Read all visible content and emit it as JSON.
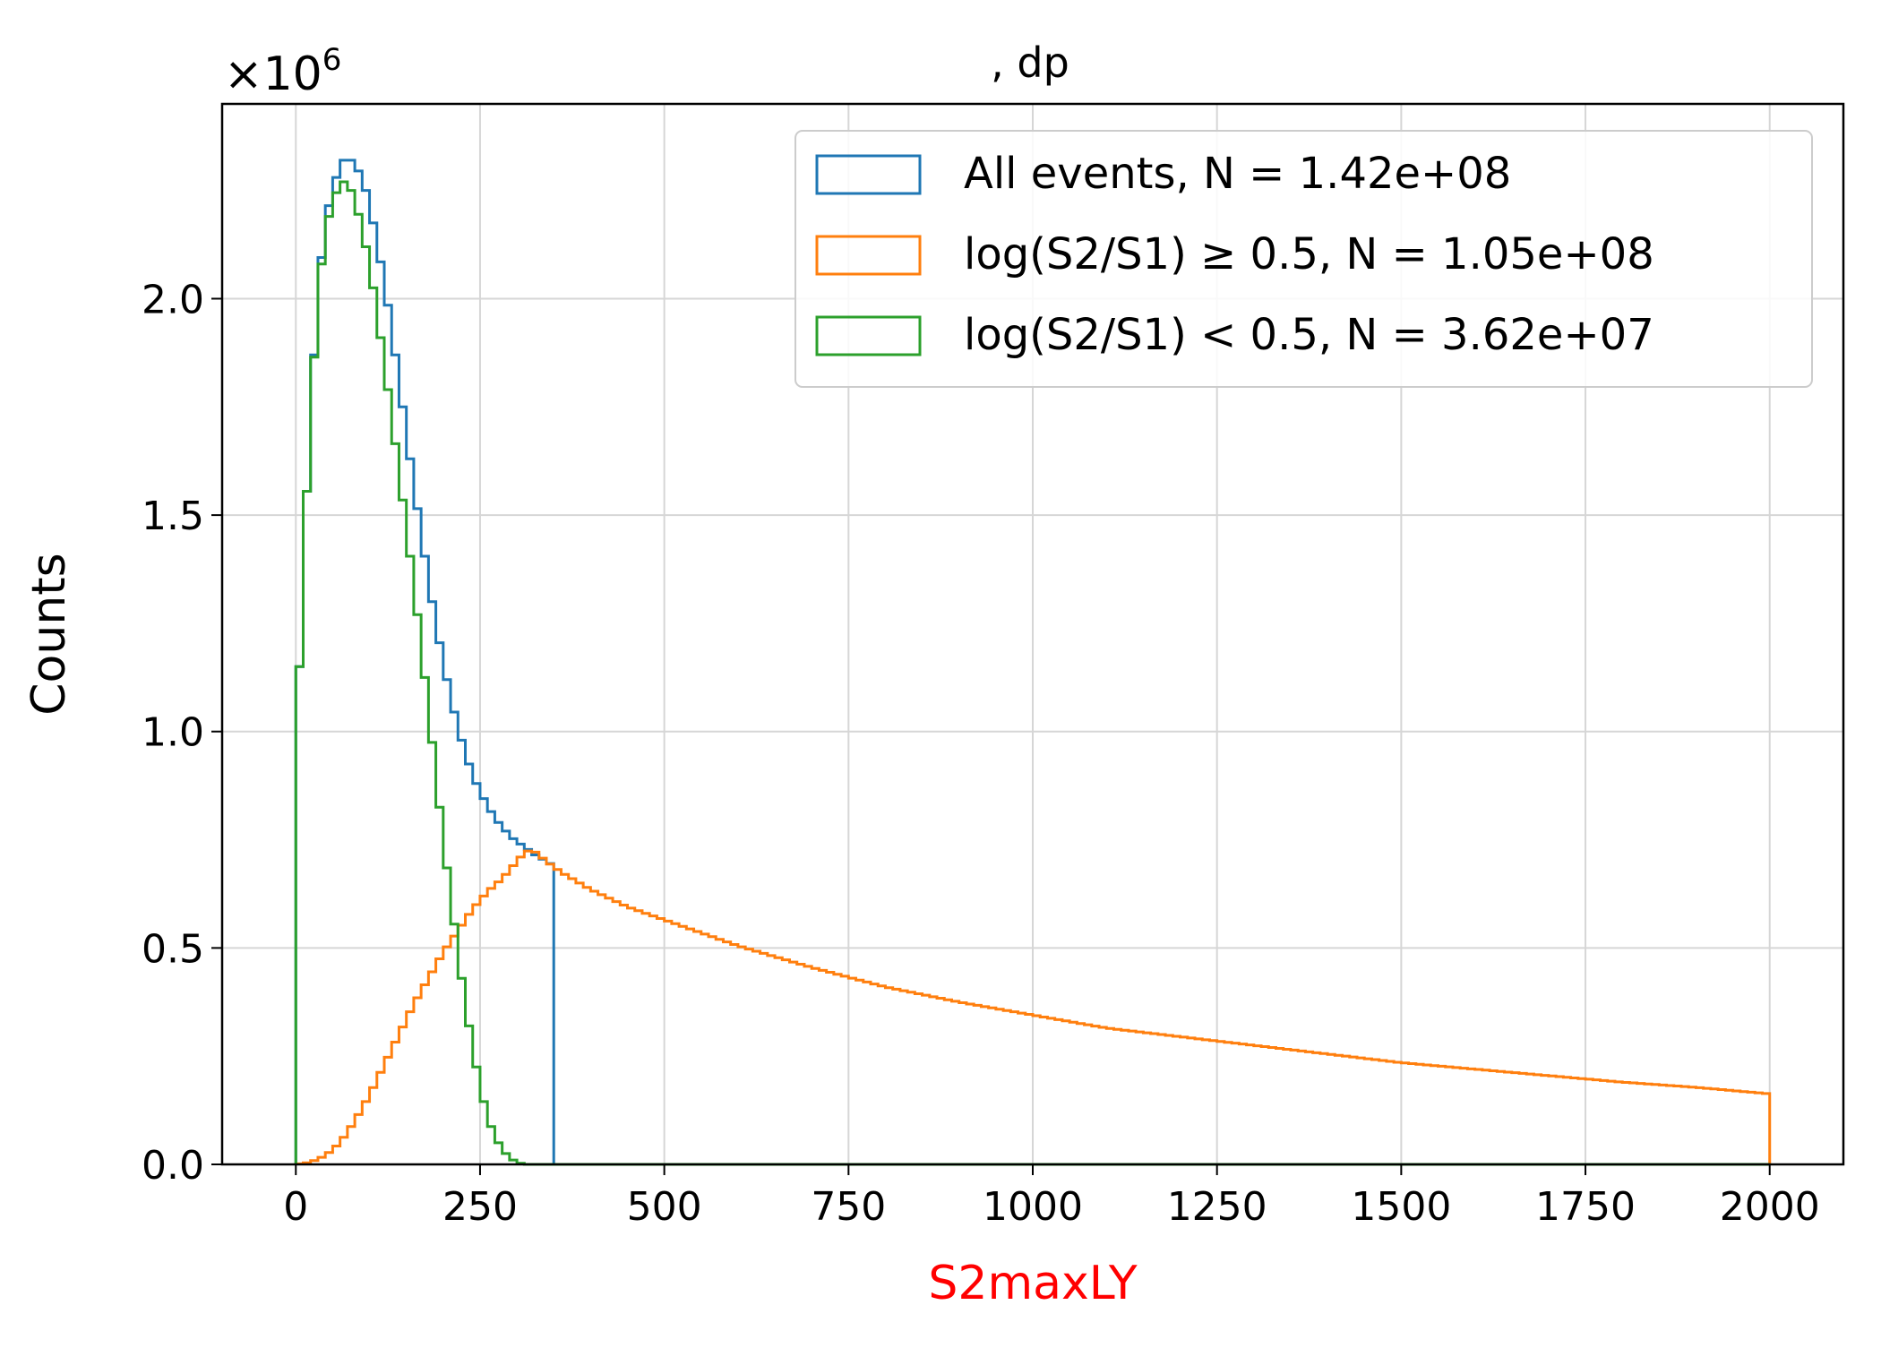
{
  "chart_data": {
    "type": "histogram",
    "title": ", dp",
    "xlabel": "S2maxLY",
    "ylabel": "Counts",
    "y_multiplier": "×10",
    "y_multiplier_exp": "6",
    "xlim": [
      -100,
      2100
    ],
    "ylim": [
      0,
      2.45
    ],
    "xticks": [
      0,
      250,
      500,
      750,
      1000,
      1250,
      1500,
      1750,
      2000
    ],
    "yticks": [
      0.0,
      0.5,
      1.0,
      1.5,
      2.0
    ],
    "grid": true,
    "legend_position": "top-right",
    "bin_width": 10,
    "x_range": [
      0,
      2000
    ],
    "colors": {
      "all": "#1f77b4",
      "high": "#ff7f0e",
      "low": "#2ca02c",
      "xlabel": "#ff0000"
    },
    "series": [
      {
        "key": "all",
        "name": "All events, N = 1.42e+08",
        "control_points": [
          [
            0,
            0.92
          ],
          [
            10,
            1.38
          ],
          [
            20,
            1.73
          ],
          [
            30,
            2.01
          ],
          [
            40,
            2.18
          ],
          [
            50,
            2.25
          ],
          [
            60,
            2.31
          ],
          [
            70,
            2.33
          ],
          [
            80,
            2.31
          ],
          [
            90,
            2.28
          ],
          [
            100,
            2.22
          ],
          [
            110,
            2.13
          ],
          [
            120,
            2.04
          ],
          [
            130,
            1.93
          ],
          [
            140,
            1.81
          ],
          [
            150,
            1.69
          ],
          [
            160,
            1.57
          ],
          [
            170,
            1.46
          ],
          [
            180,
            1.35
          ],
          [
            190,
            1.25
          ],
          [
            200,
            1.16
          ],
          [
            210,
            1.08
          ],
          [
            220,
            1.01
          ],
          [
            230,
            0.95
          ],
          [
            240,
            0.9
          ],
          [
            250,
            0.86
          ],
          [
            260,
            0.83
          ],
          [
            270,
            0.8
          ],
          [
            280,
            0.78
          ],
          [
            290,
            0.76
          ],
          [
            300,
            0.745
          ],
          [
            310,
            0.735
          ],
          [
            320,
            0.72
          ],
          [
            330,
            0.71
          ],
          [
            340,
            0.7
          ],
          [
            350,
            0.69
          ]
        ]
      },
      {
        "key": "high",
        "name": "log(S2/S1) ≥ 0.5, N = 1.05e+08",
        "control_points": [
          [
            0,
            0.0
          ],
          [
            20,
            0.005
          ],
          [
            40,
            0.02
          ],
          [
            60,
            0.05
          ],
          [
            80,
            0.1
          ],
          [
            100,
            0.16
          ],
          [
            120,
            0.23
          ],
          [
            140,
            0.3
          ],
          [
            160,
            0.37
          ],
          [
            180,
            0.43
          ],
          [
            200,
            0.49
          ],
          [
            220,
            0.54
          ],
          [
            240,
            0.59
          ],
          [
            260,
            0.63
          ],
          [
            280,
            0.66
          ],
          [
            300,
            0.7
          ],
          [
            310,
            0.72
          ],
          [
            320,
            0.728
          ],
          [
            330,
            0.715
          ],
          [
            340,
            0.7
          ],
          [
            360,
            0.675
          ],
          [
            400,
            0.635
          ],
          [
            450,
            0.595
          ],
          [
            500,
            0.565
          ],
          [
            550,
            0.535
          ],
          [
            600,
            0.505
          ],
          [
            700,
            0.455
          ],
          [
            800,
            0.41
          ],
          [
            900,
            0.375
          ],
          [
            1000,
            0.345
          ],
          [
            1100,
            0.315
          ],
          [
            1200,
            0.295
          ],
          [
            1300,
            0.275
          ],
          [
            1400,
            0.255
          ],
          [
            1500,
            0.235
          ],
          [
            1600,
            0.22
          ],
          [
            1700,
            0.205
          ],
          [
            1800,
            0.19
          ],
          [
            1900,
            0.178
          ],
          [
            2000,
            0.163
          ]
        ]
      },
      {
        "key": "low",
        "name": "log(S2/S1) < 0.5, N = 3.62e+07",
        "control_points": [
          [
            0,
            0.92
          ],
          [
            10,
            1.38
          ],
          [
            20,
            1.73
          ],
          [
            30,
            2.0
          ],
          [
            40,
            2.16
          ],
          [
            50,
            2.22
          ],
          [
            60,
            2.27
          ],
          [
            70,
            2.27
          ],
          [
            80,
            2.23
          ],
          [
            90,
            2.16
          ],
          [
            100,
            2.08
          ],
          [
            110,
            1.97
          ],
          [
            120,
            1.85
          ],
          [
            130,
            1.73
          ],
          [
            140,
            1.6
          ],
          [
            150,
            1.47
          ],
          [
            160,
            1.34
          ],
          [
            170,
            1.2
          ],
          [
            180,
            1.05
          ],
          [
            190,
            0.9
          ],
          [
            200,
            0.75
          ],
          [
            210,
            0.62
          ],
          [
            220,
            0.49
          ],
          [
            230,
            0.37
          ],
          [
            240,
            0.27
          ],
          [
            250,
            0.18
          ],
          [
            260,
            0.11
          ],
          [
            270,
            0.065
          ],
          [
            280,
            0.035
          ],
          [
            290,
            0.015
          ],
          [
            300,
            0.005
          ],
          [
            310,
            0.0
          ]
        ]
      }
    ]
  }
}
